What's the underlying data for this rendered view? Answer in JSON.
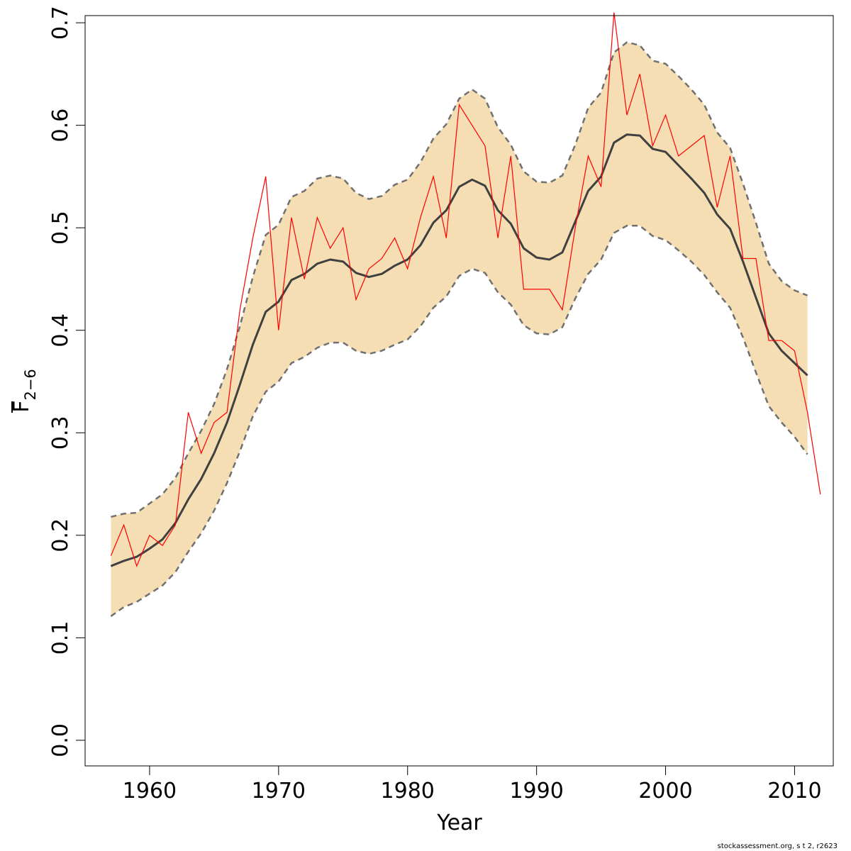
{
  "chart_data": {
    "type": "line",
    "xlabel": "Year",
    "ylabel_main": "F",
    "ylabel_subscript": "2−6",
    "xlim": [
      1955,
      2013
    ],
    "ylim": [
      -0.025,
      0.707
    ],
    "x_ticks": [
      1960,
      1970,
      1980,
      1990,
      2000,
      2010
    ],
    "y_ticks": [
      0.0,
      0.1,
      0.2,
      0.3,
      0.4,
      0.5,
      0.6,
      0.7
    ],
    "y_tick_labels": [
      "0.0",
      "0.1",
      "0.2",
      "0.3",
      "0.4",
      "0.5",
      "0.6",
      "0.7"
    ],
    "grid": false,
    "colors": {
      "band_fill": "#F5DEB3",
      "band_border": "#707070",
      "estimate": "#404040",
      "observed": "#FF0000"
    },
    "years": [
      1957,
      1958,
      1959,
      1960,
      1961,
      1962,
      1963,
      1964,
      1965,
      1966,
      1967,
      1968,
      1969,
      1970,
      1971,
      1972,
      1973,
      1974,
      1975,
      1976,
      1977,
      1978,
      1979,
      1980,
      1981,
      1982,
      1983,
      1984,
      1985,
      1986,
      1987,
      1988,
      1989,
      1990,
      1991,
      1992,
      1993,
      1994,
      1995,
      1996,
      1997,
      1998,
      1999,
      2000,
      2001,
      2002,
      2003,
      2004,
      2005,
      2006,
      2007,
      2008,
      2009,
      2010,
      2011
    ],
    "estimate": [
      0.17,
      0.175,
      0.179,
      0.187,
      0.196,
      0.212,
      0.235,
      0.255,
      0.28,
      0.31,
      0.347,
      0.386,
      0.418,
      0.428,
      0.449,
      0.455,
      0.465,
      0.469,
      0.467,
      0.456,
      0.452,
      0.455,
      0.463,
      0.469,
      0.483,
      0.505,
      0.517,
      0.54,
      0.547,
      0.541,
      0.517,
      0.504,
      0.48,
      0.471,
      0.469,
      0.476,
      0.506,
      0.536,
      0.55,
      0.583,
      0.591,
      0.59,
      0.577,
      0.574,
      0.561,
      0.548,
      0.534,
      0.513,
      0.499,
      0.467,
      0.432,
      0.397,
      0.38,
      0.368,
      0.356
    ],
    "lower": [
      0.121,
      0.13,
      0.135,
      0.143,
      0.151,
      0.164,
      0.184,
      0.202,
      0.224,
      0.251,
      0.282,
      0.316,
      0.34,
      0.35,
      0.368,
      0.374,
      0.383,
      0.388,
      0.388,
      0.38,
      0.377,
      0.38,
      0.386,
      0.391,
      0.404,
      0.422,
      0.433,
      0.453,
      0.46,
      0.456,
      0.437,
      0.425,
      0.405,
      0.397,
      0.396,
      0.403,
      0.431,
      0.455,
      0.469,
      0.495,
      0.502,
      0.502,
      0.492,
      0.488,
      0.478,
      0.467,
      0.454,
      0.437,
      0.422,
      0.393,
      0.359,
      0.326,
      0.31,
      0.296,
      0.279
    ],
    "upper": [
      0.218,
      0.221,
      0.222,
      0.231,
      0.24,
      0.256,
      0.28,
      0.302,
      0.328,
      0.362,
      0.404,
      0.452,
      0.493,
      0.503,
      0.53,
      0.536,
      0.548,
      0.551,
      0.548,
      0.534,
      0.528,
      0.531,
      0.542,
      0.547,
      0.564,
      0.587,
      0.601,
      0.626,
      0.635,
      0.626,
      0.598,
      0.581,
      0.555,
      0.545,
      0.544,
      0.551,
      0.581,
      0.617,
      0.632,
      0.671,
      0.681,
      0.678,
      0.663,
      0.66,
      0.648,
      0.635,
      0.62,
      0.593,
      0.578,
      0.543,
      0.505,
      0.465,
      0.448,
      0.439,
      0.434
    ],
    "observed_years": [
      1957,
      1958,
      1959,
      1960,
      1961,
      1962,
      1963,
      1964,
      1965,
      1966,
      1967,
      1968,
      1969,
      1970,
      1971,
      1972,
      1973,
      1974,
      1975,
      1976,
      1977,
      1978,
      1979,
      1980,
      1981,
      1982,
      1983,
      1984,
      1985,
      1986,
      1987,
      1988,
      1989,
      1990,
      1991,
      1992,
      1993,
      1994,
      1995,
      1996,
      1997,
      1998,
      1999,
      2000,
      2001,
      2002,
      2003,
      2004,
      2005,
      2006,
      2007,
      2008,
      2009,
      2010,
      2011,
      2012
    ],
    "observed": [
      0.18,
      0.21,
      0.17,
      0.2,
      0.19,
      0.21,
      0.32,
      0.28,
      0.31,
      0.32,
      0.42,
      0.49,
      0.55,
      0.4,
      0.51,
      0.45,
      0.51,
      0.48,
      0.5,
      0.43,
      0.46,
      0.47,
      0.49,
      0.46,
      0.51,
      0.55,
      0.49,
      0.62,
      0.6,
      0.58,
      0.49,
      0.57,
      0.44,
      0.44,
      0.44,
      0.42,
      0.5,
      0.57,
      0.54,
      0.71,
      0.61,
      0.65,
      0.58,
      0.61,
      0.57,
      0.58,
      0.59,
      0.52,
      0.57,
      0.47,
      0.47,
      0.39,
      0.39,
      0.38,
      0.32,
      0.24
    ]
  },
  "footer": {
    "credit": "stockassessment.org, s  t  2, r2623"
  }
}
